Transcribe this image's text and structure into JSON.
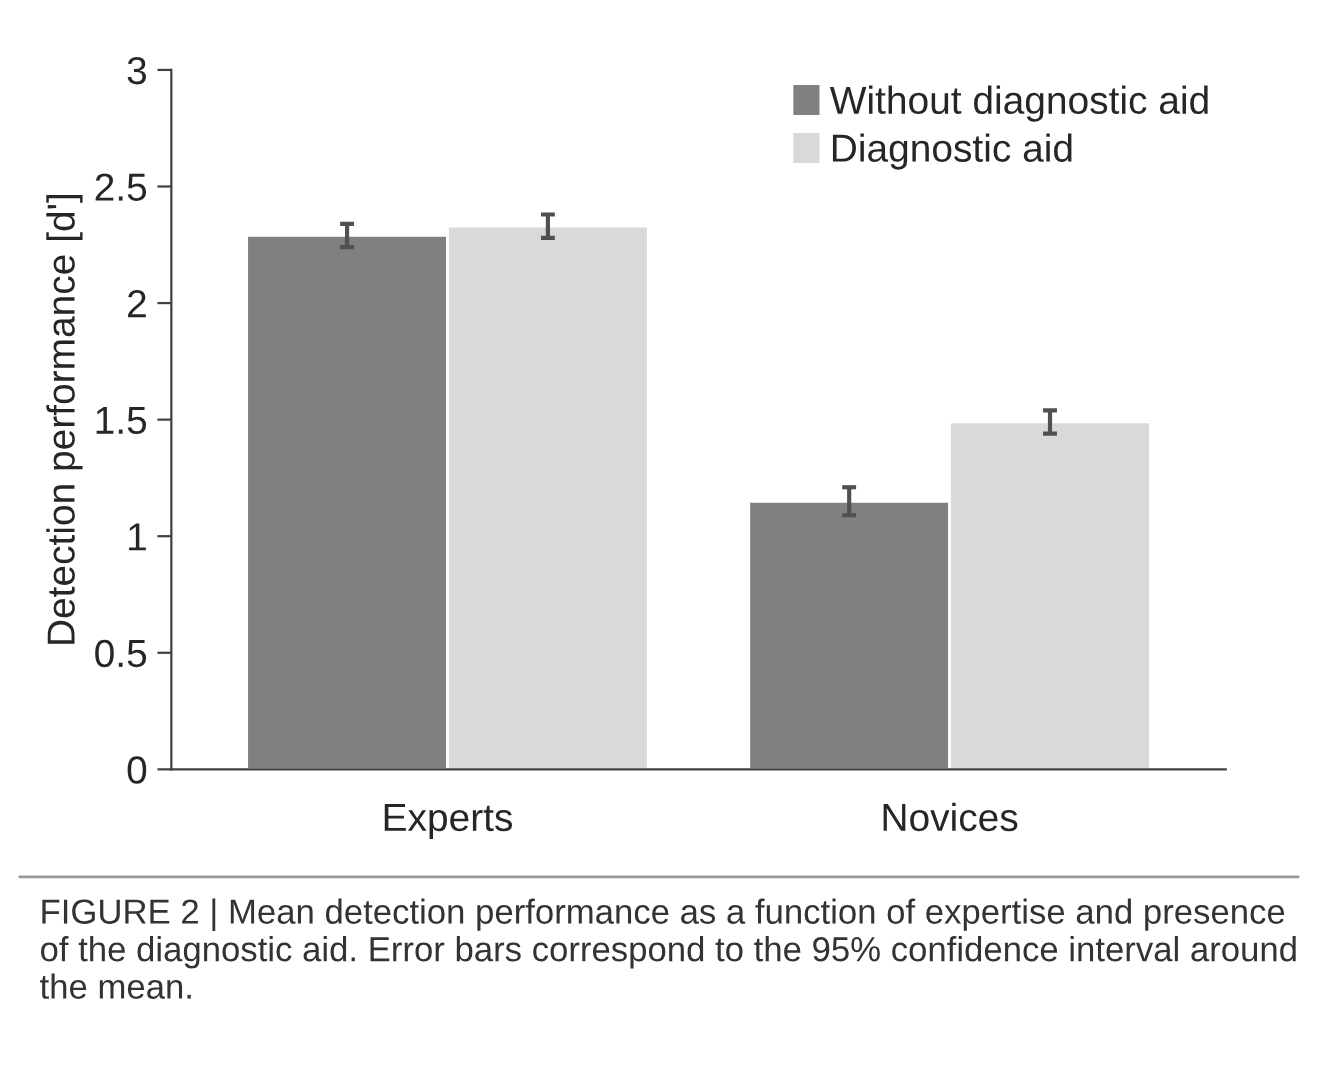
{
  "chart_data": {
    "type": "bar",
    "ylabel": "Detection performance [d']",
    "categories": [
      "Experts",
      "Novices"
    ],
    "series": [
      {
        "name": "Without diagnostic aid",
        "color": "#808080",
        "values": [
          2.29,
          1.15
        ],
        "errors": [
          0.05,
          0.06
        ]
      },
      {
        "name": "Diagnostic aid",
        "color": "#d9d9d9",
        "values": [
          2.33,
          1.49
        ],
        "errors": [
          0.05,
          0.05
        ]
      }
    ],
    "ylim": [
      0,
      3
    ],
    "yticks": [
      0,
      {
        "value": 0.5,
        "label": "0.5"
      },
      1,
      {
        "value": 1.5,
        "label": "1.5"
      },
      2,
      {
        "value": 2.5,
        "label": "2.5"
      },
      3
    ],
    "legend": "top right",
    "grid": false,
    "annotations": [
      "FIGURE 2 | Mean detection performance as a function of expertise and presence of the diagnostic aid. Error bars correspond to the 95% confidence interval around the mean."
    ]
  }
}
